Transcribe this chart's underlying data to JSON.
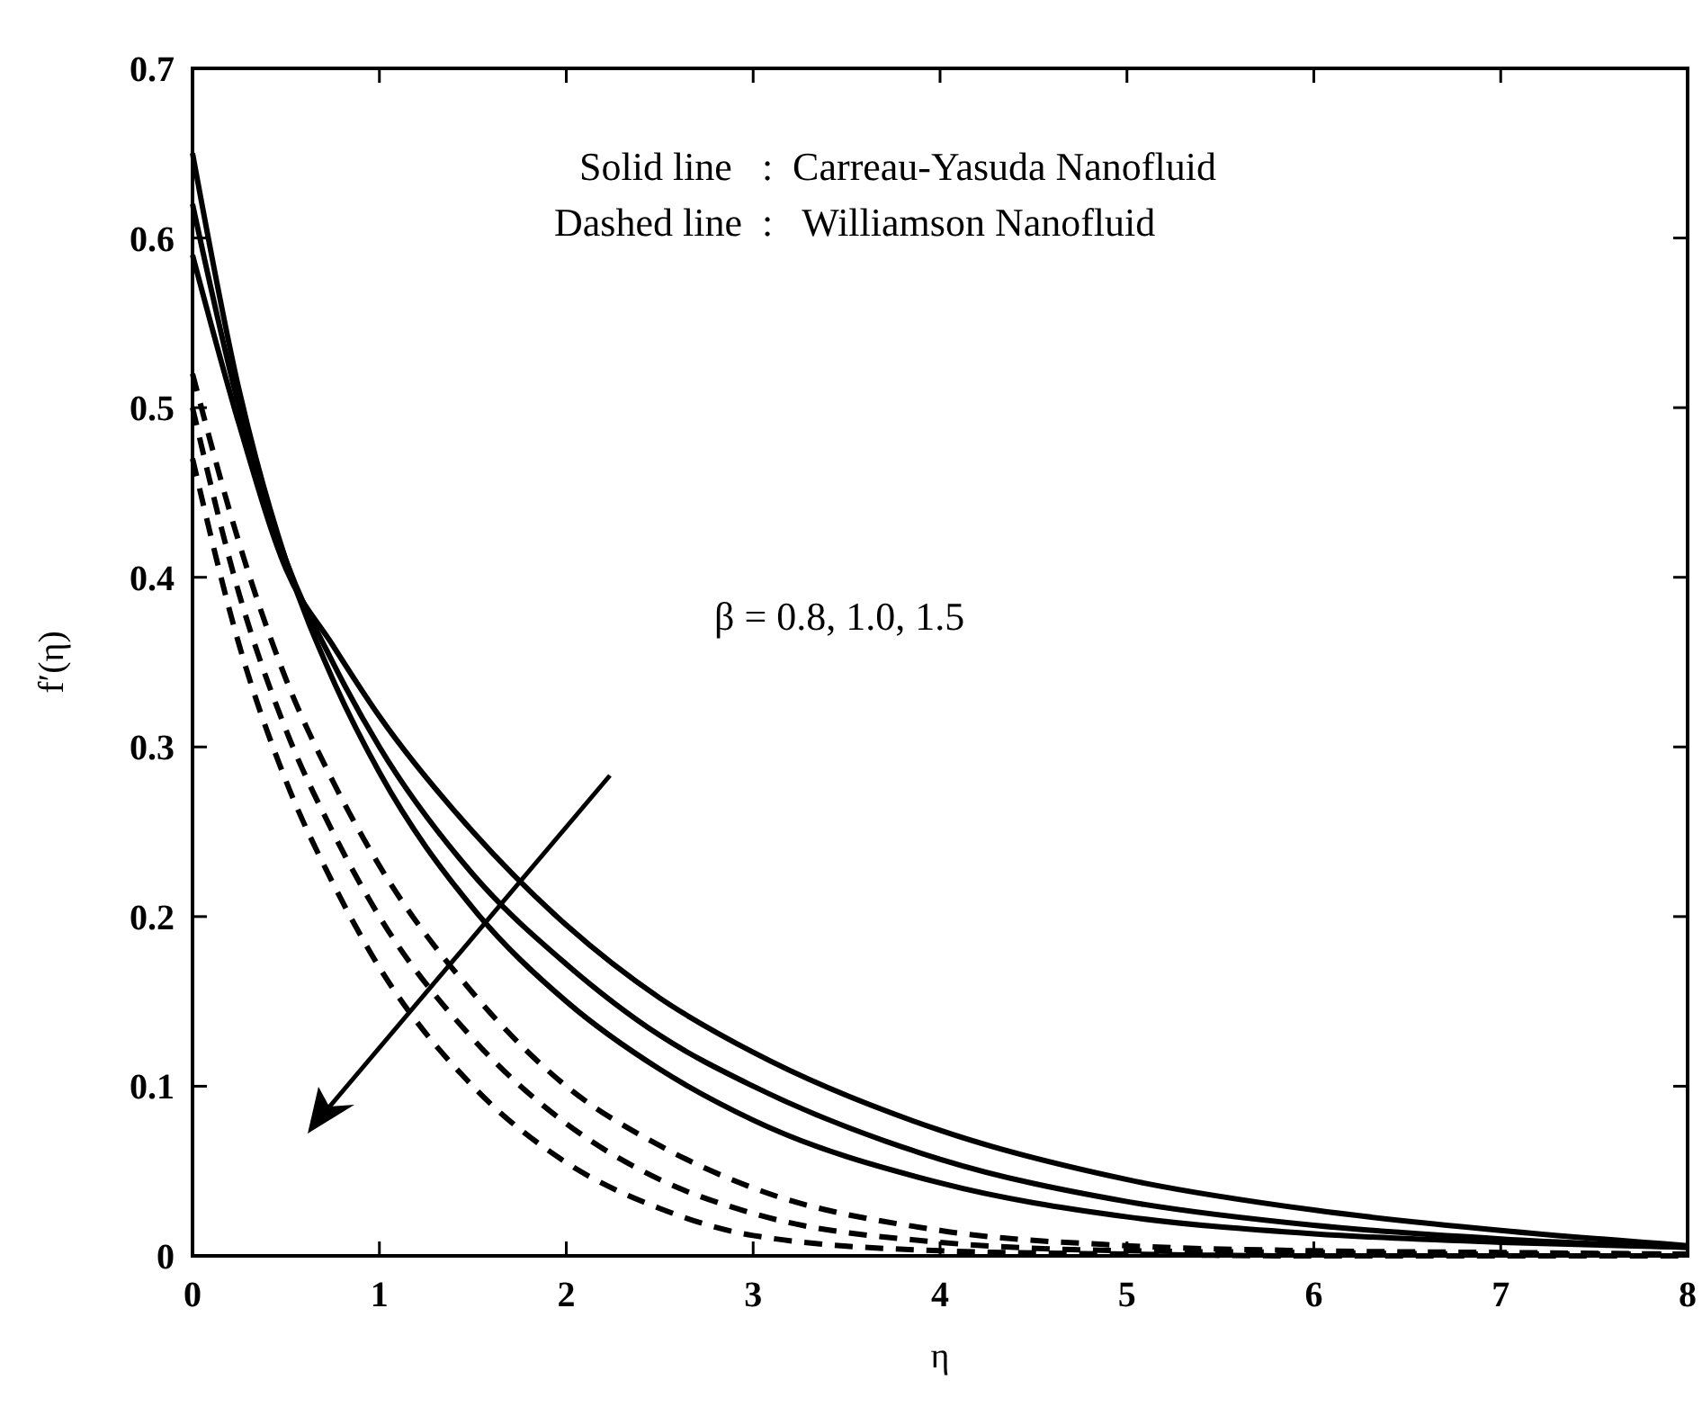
{
  "chart_data": {
    "type": "line",
    "xlabel": "η",
    "ylabel": "f′(η)",
    "xlim": [
      0,
      8
    ],
    "ylim": [
      0,
      0.7
    ],
    "xticks": [
      0,
      1,
      2,
      3,
      4,
      5,
      6,
      7,
      8
    ],
    "yticks": [
      0,
      0.1,
      0.2,
      0.3,
      0.4,
      0.5,
      0.6,
      0.7
    ],
    "grid": false,
    "x": [
      0,
      0.25,
      0.5,
      0.75,
      1,
      1.5,
      2,
      2.5,
      3,
      4,
      5,
      6,
      7,
      8
    ],
    "series": [
      {
        "color": "#000000",
        "line_style": "solid",
        "values": [
          0.65,
          0.51,
          0.41,
          0.34,
          0.285,
          0.205,
          0.15,
          0.11,
          0.08,
          0.043,
          0.023,
          0.013,
          0.008,
          0.005
        ]
      },
      {
        "color": "#000000",
        "line_style": "solid",
        "values": [
          0.62,
          0.5,
          0.41,
          0.35,
          0.3,
          0.225,
          0.172,
          0.13,
          0.1,
          0.057,
          0.032,
          0.018,
          0.01,
          0.005
        ]
      },
      {
        "color": "#000000",
        "line_style": "solid",
        "values": [
          0.59,
          0.49,
          0.405,
          0.36,
          0.318,
          0.25,
          0.195,
          0.152,
          0.12,
          0.074,
          0.045,
          0.027,
          0.015,
          0.006
        ]
      },
      {
        "color": "#000000",
        "line_style": "dashed",
        "values": [
          0.52,
          0.42,
          0.34,
          0.28,
          0.23,
          0.155,
          0.1,
          0.065,
          0.04,
          0.015,
          0.006,
          0.003,
          0.002,
          0.001
        ]
      },
      {
        "color": "#000000",
        "line_style": "dashed",
        "values": [
          0.5,
          0.39,
          0.31,
          0.25,
          0.2,
          0.128,
          0.078,
          0.045,
          0.025,
          0.008,
          0.003,
          0.002,
          0.001,
          0.001
        ]
      },
      {
        "color": "#000000",
        "line_style": "dashed",
        "values": [
          0.47,
          0.36,
          0.28,
          0.22,
          0.17,
          0.1,
          0.055,
          0.028,
          0.012,
          0.003,
          0.001,
          0,
          0,
          0
        ]
      }
    ],
    "annotations": [
      "Solid line   :  Carreau-Yasuda Nanofluid",
      "Dashed line  :   Williamson Nanofluid",
      "β = 0.8, 1.0, 1.5"
    ]
  }
}
